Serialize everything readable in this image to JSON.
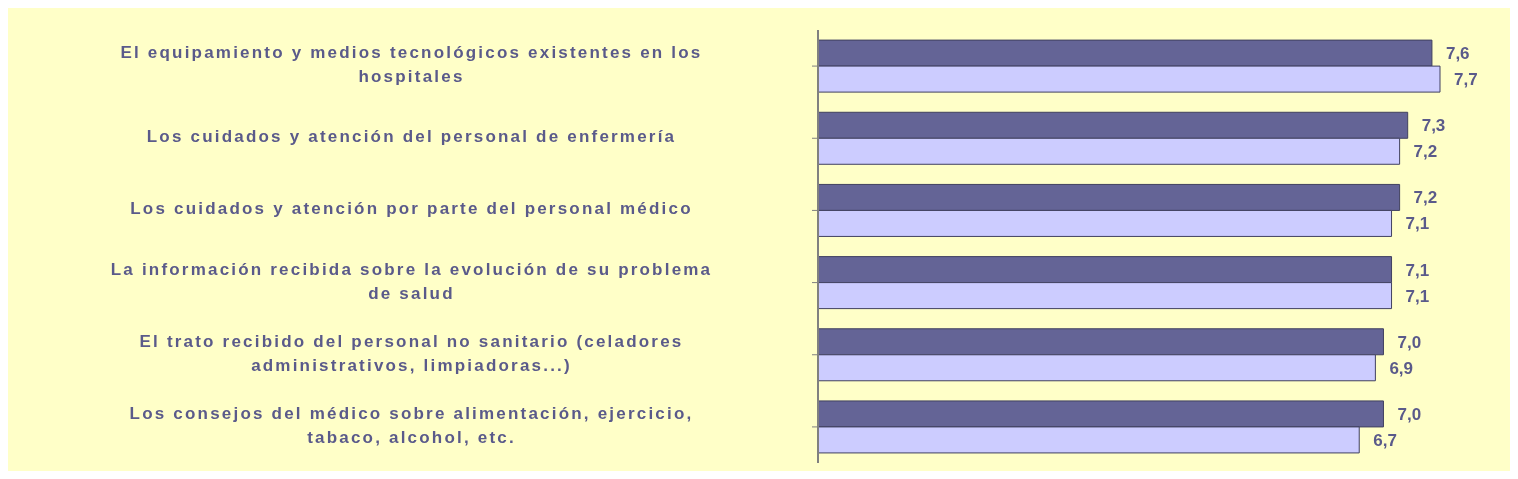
{
  "chart_data": {
    "type": "bar",
    "orientation": "horizontal",
    "categories": [
      "El equipamiento y medios tecnológicos existentes en los hospitales",
      "Los cuidados y atención del personal de enfermería",
      "Los cuidados y atención por parte del personal médico",
      "La información recibida sobre la evolución de su problema de salud",
      "El trato recibido del personal no sanitario (celadores administrativos, limpiadoras...)",
      "Los consejos del médico sobre alimentación, ejercicio, tabaco, alcohol, etc."
    ],
    "series": [
      {
        "color": "#646496",
        "values": [
          7.6,
          7.3,
          7.2,
          7.1,
          7.0,
          7.0
        ],
        "value_labels": [
          "7,6",
          "7,3",
          "7,2",
          "7,1",
          "7,0",
          "7,0"
        ]
      },
      {
        "color": "#ccccff",
        "values": [
          7.7,
          7.2,
          7.1,
          7.1,
          6.9,
          6.7
        ],
        "value_labels": [
          "7,7",
          "7,2",
          "7,1",
          "7,1",
          "6,9",
          "6,7"
        ]
      }
    ]
  }
}
